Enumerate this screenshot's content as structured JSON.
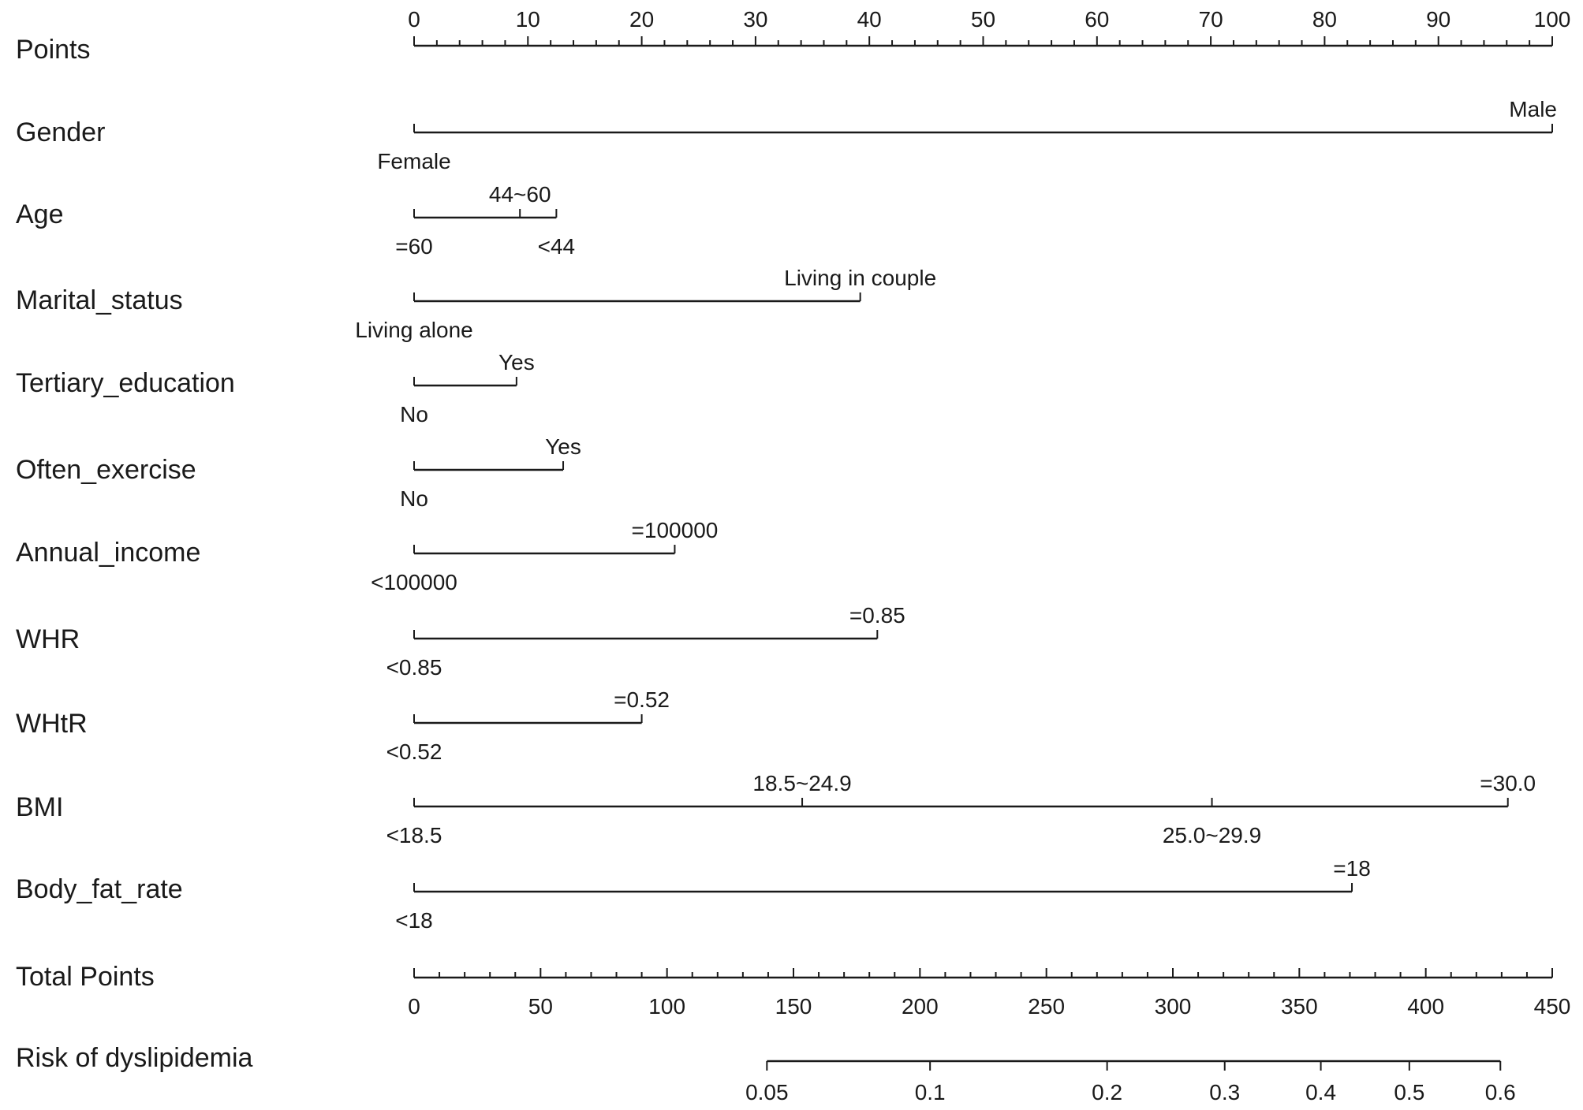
{
  "chart_data": {
    "type": "nomogram",
    "points_axis": {
      "label": "Points",
      "range": [
        0,
        100
      ],
      "major_ticks": [
        0,
        10,
        20,
        30,
        40,
        50,
        60,
        70,
        80,
        90,
        100
      ],
      "minor_step": 2
    },
    "variables": [
      {
        "name": "Gender",
        "line": [
          0,
          100
        ],
        "levels": [
          {
            "label": "Male",
            "points": 100,
            "pos": "above"
          },
          {
            "label": "Female",
            "points": 0,
            "pos": "below"
          }
        ]
      },
      {
        "name": "Age",
        "line": [
          0,
          12.5
        ],
        "levels": [
          {
            "label": "44~60",
            "points": 9.3,
            "pos": "above"
          },
          {
            "label": "=60",
            "points": 0,
            "pos": "below"
          },
          {
            "label": "<44",
            "points": 12.5,
            "pos": "below"
          }
        ]
      },
      {
        "name": "Marital_status",
        "line": [
          0,
          39.2
        ],
        "levels": [
          {
            "label": "Living in couple",
            "points": 39.2,
            "pos": "above"
          },
          {
            "label": "Living alone",
            "points": 0,
            "pos": "below"
          }
        ]
      },
      {
        "name": "Tertiary_education",
        "line": [
          0,
          9.0
        ],
        "levels": [
          {
            "label": "Yes",
            "points": 9.0,
            "pos": "above"
          },
          {
            "label": "No",
            "points": 0,
            "pos": "below"
          }
        ]
      },
      {
        "name": "Often_exercise",
        "line": [
          0,
          13.1
        ],
        "levels": [
          {
            "label": "Yes",
            "points": 13.1,
            "pos": "above"
          },
          {
            "label": "No",
            "points": 0,
            "pos": "below"
          }
        ]
      },
      {
        "name": "Annual_income",
        "line": [
          0,
          22.9
        ],
        "levels": [
          {
            "label": "=100000",
            "points": 22.9,
            "pos": "above"
          },
          {
            "label": "<100000",
            "points": 0,
            "pos": "below"
          }
        ]
      },
      {
        "name": "WHR",
        "line": [
          0,
          40.7
        ],
        "levels": [
          {
            "label": "=0.85",
            "points": 40.7,
            "pos": "above"
          },
          {
            "label": "<0.85",
            "points": 0,
            "pos": "below"
          }
        ]
      },
      {
        "name": "WHtR",
        "line": [
          0,
          20.0
        ],
        "levels": [
          {
            "label": "=0.52",
            "points": 20.0,
            "pos": "above"
          },
          {
            "label": "<0.52",
            "points": 0,
            "pos": "below"
          }
        ]
      },
      {
        "name": "BMI",
        "line": [
          0,
          96.1
        ],
        "levels": [
          {
            "label": "18.5~24.9",
            "points": 34.1,
            "pos": "above"
          },
          {
            "label": "=30.0",
            "points": 96.1,
            "pos": "above"
          },
          {
            "label": "<18.5",
            "points": 0,
            "pos": "below"
          },
          {
            "label": "25.0~29.9",
            "points": 70.1,
            "pos": "below"
          }
        ]
      },
      {
        "name": "Body_fat_rate",
        "line": [
          0,
          82.4
        ],
        "levels": [
          {
            "label": "=18",
            "points": 82.4,
            "pos": "above"
          },
          {
            "label": "<18",
            "points": 0,
            "pos": "below"
          }
        ]
      }
    ],
    "total_points_axis": {
      "label": "Total Points",
      "range": [
        0,
        450
      ],
      "major_ticks": [
        0,
        50,
        100,
        150,
        200,
        250,
        300,
        350,
        400,
        450
      ],
      "minor_step": 10
    },
    "risk_axis": {
      "label": "Risk of dyslipidemia",
      "ticks": [
        {
          "label": "0.05",
          "total_points": 139.5
        },
        {
          "label": "0.1",
          "total_points": 204
        },
        {
          "label": "0.2",
          "total_points": 274
        },
        {
          "label": "0.3",
          "total_points": 320.5
        },
        {
          "label": "0.4",
          "total_points": 358.5
        },
        {
          "label": "0.5",
          "total_points": 393.5
        },
        {
          "label": "0.6",
          "total_points": 429.5
        }
      ]
    }
  }
}
